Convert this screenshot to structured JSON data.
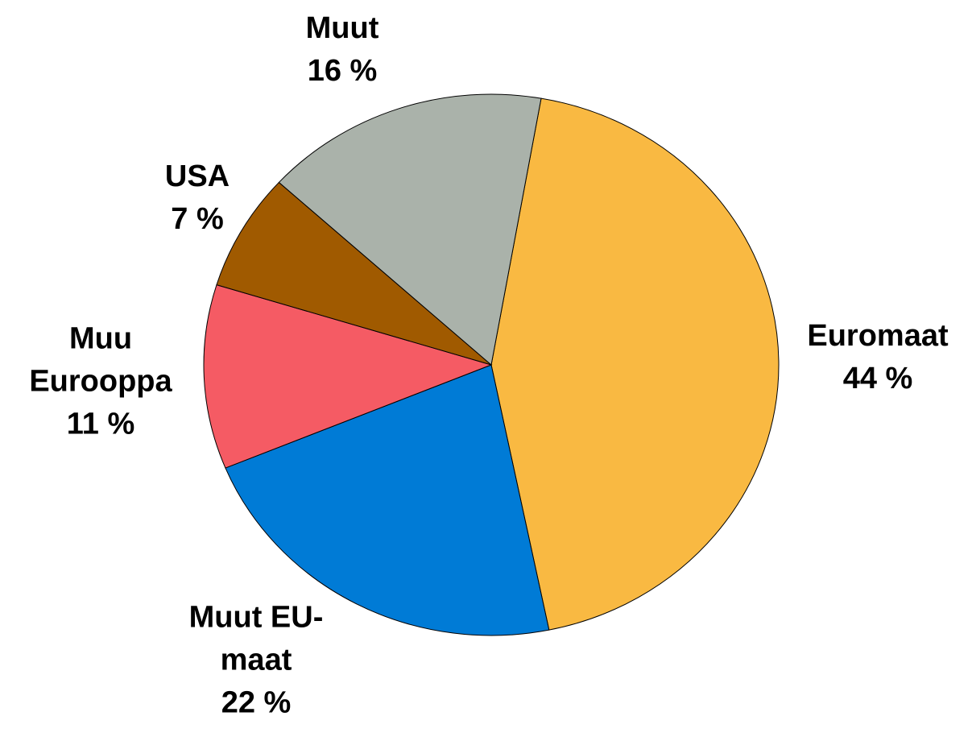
{
  "chart_data": {
    "type": "pie",
    "categories": [
      "Euromaat",
      "Muut EU-maat",
      "Muu Eurooppa",
      "USA",
      "Muut"
    ],
    "values": [
      44,
      22,
      11,
      7,
      16
    ],
    "value_labels": [
      "44 %",
      "22 %",
      "11 %",
      "7 %",
      "16 %"
    ],
    "colors": [
      "#f9b942",
      "#007bd6",
      "#f55b64",
      "#a05a00",
      "#aab2aa"
    ]
  }
}
